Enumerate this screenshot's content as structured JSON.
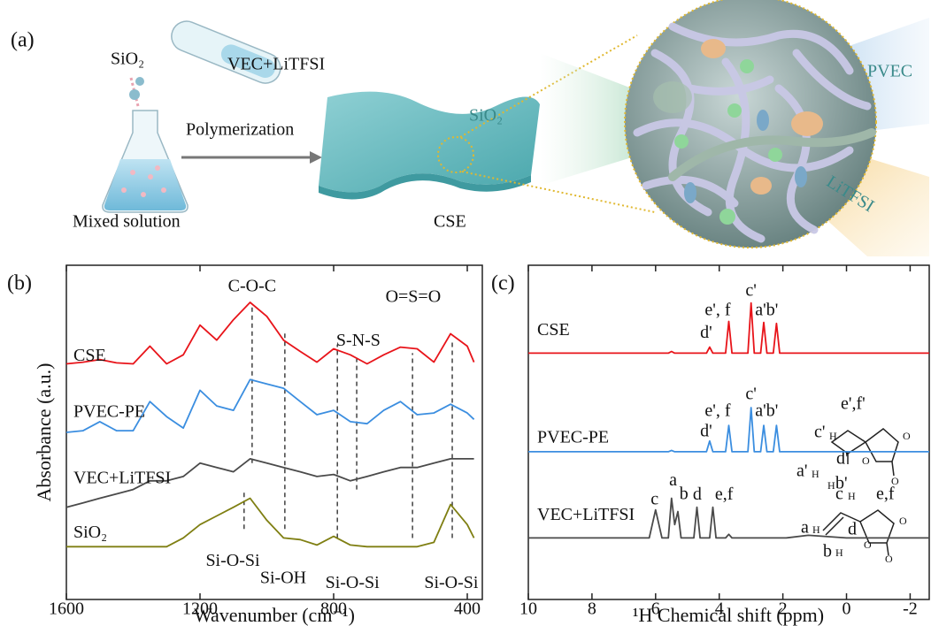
{
  "figure": {
    "panel_a": {
      "label": "(a)",
      "silica": "SiO₂",
      "monomer": "VEC+LiTFSI",
      "process": "Polymerization",
      "flask": "Mixed solution",
      "membrane": "CSE",
      "zoom_silica": "SiO₂",
      "zoom_polymer": "PVEC",
      "zoom_salt": "LiTFSI"
    },
    "structures": {
      "pvec": [
        "e',f'",
        "c'",
        "H",
        "d'",
        "a'",
        "H",
        "H",
        "b'",
        "O",
        "O",
        "O"
      ],
      "vec": [
        "c",
        "H",
        "e,f",
        "a",
        "H",
        "d",
        "b",
        "H",
        "O",
        "O",
        "O"
      ]
    }
  },
  "chart_data": [
    {
      "type": "line",
      "panel_label": "(b)",
      "xlabel": "Wavenumber (cm⁻¹)",
      "ylabel": "Absorbance (a.u.)",
      "x": [
        1600,
        1550,
        1500,
        1450,
        1400,
        1350,
        1300,
        1250,
        1200,
        1150,
        1100,
        1050,
        1000,
        950,
        900,
        850,
        800,
        750,
        700,
        650,
        600,
        550,
        500,
        450,
        400,
        380
      ],
      "xlim": [
        1600,
        355
      ],
      "xticks": [
        1600,
        1200,
        800,
        400
      ],
      "ylim": [
        0,
        100
      ],
      "series": [
        {
          "name": "CSE",
          "color": "#e8141a",
          "values": [
            70.5,
            71,
            71.8,
            70.8,
            70.5,
            75.8,
            70.5,
            73.2,
            82.1,
            77.6,
            83.7,
            88.9,
            84.7,
            77.6,
            74.2,
            71,
            75,
            73.2,
            70.5,
            73.2,
            75.5,
            75,
            71,
            79.5,
            75.8,
            71
          ]
        },
        {
          "name": "PVEC-PE",
          "color": "#3b8ee0",
          "values": [
            50,
            50.5,
            53.2,
            50.5,
            50.5,
            59.2,
            54.7,
            51.3,
            62.6,
            57.9,
            56.6,
            65.8,
            64.5,
            63.2,
            59.2,
            55.3,
            56.6,
            53.2,
            52.6,
            56.6,
            59.2,
            55.3,
            55.8,
            58.4,
            55.8,
            53.9
          ]
        },
        {
          "name": "VEC+LiTFSI",
          "color": "#4a4a4a",
          "values": [
            27.6,
            28.9,
            30.3,
            31.6,
            32.9,
            35.5,
            35.5,
            36.8,
            40.8,
            39.5,
            38.2,
            42.1,
            40.8,
            39.5,
            38.2,
            36.8,
            37.4,
            35.5,
            36.8,
            38.2,
            39.5,
            39.5,
            40.8,
            42.1,
            42.1,
            42.1
          ]
        },
        {
          "name": "SiO₂",
          "color": "#7f7f12",
          "values": [
            15.8,
            15.8,
            15.8,
            15.8,
            15.8,
            15.8,
            15.8,
            18.4,
            22.4,
            25,
            27.6,
            30.3,
            23.7,
            18.4,
            17.9,
            16.3,
            18.9,
            16.3,
            15.8,
            15.8,
            15.8,
            15.8,
            17.1,
            28.4,
            22.4,
            18.4
          ]
        }
      ],
      "vlines": [
        {
          "x": 1068,
          "y": [
            21.1,
            32.9
          ]
        },
        {
          "x": 1044,
          "y": [
            40.8,
            88.2
          ]
        },
        {
          "x": 946,
          "y": [
            21.1,
            80.3
          ]
        },
        {
          "x": 789,
          "y": [
            18.4,
            76.3
          ]
        },
        {
          "x": 731,
          "y": [
            32.9,
            72.4
          ]
        },
        {
          "x": 564,
          "y": [
            18.4,
            73.7
          ]
        },
        {
          "x": 445,
          "y": [
            18.4,
            77.6
          ]
        }
      ],
      "annotations": [
        {
          "text": "C-O-C",
          "x": 1044,
          "y": 93.4
        },
        {
          "text": "S-N-S",
          "x": 726,
          "y": 77.1
        },
        {
          "text": "O=S=O",
          "x": 562,
          "y": 90.3
        },
        {
          "text": "Si-O-Si",
          "x": 1102,
          "y": 11.3
        },
        {
          "text": "Si-OH",
          "x": 951,
          "y": 6.1
        },
        {
          "text": "Si-O-Si",
          "x": 744,
          "y": 4.7
        },
        {
          "text": "Si-O-Si",
          "x": 448,
          "y": 4.7
        }
      ]
    },
    {
      "type": "line",
      "panel_label": "(c)",
      "xlabel": "¹H Chemical shift (ppm)",
      "x": [
        10,
        7,
        6.5,
        6.2,
        6.0,
        5.8,
        5.6,
        5.5,
        5.4,
        5.3,
        5.2,
        5.0,
        4.8,
        4.7,
        4.6,
        4.4,
        4.3,
        4.2,
        4.1,
        3.9,
        3.8,
        3.7,
        3.6,
        3.4,
        3.1,
        3.0,
        2.9,
        2.7,
        2.6,
        2.5,
        2.3,
        2.2,
        2.1,
        1.9,
        1.2,
        0,
        -2.6
      ],
      "xlim": [
        10,
        -2.6
      ],
      "xticks": [
        10,
        8,
        6,
        4,
        2,
        0,
        -2
      ],
      "ylim": [
        0,
        100
      ],
      "series": [
        {
          "name": "CSE",
          "color": "#e8141a",
          "values": [
            73.7,
            73.7,
            73.7,
            73.7,
            73.7,
            73.7,
            73.7,
            74.2,
            73.7,
            73.7,
            73.7,
            73.7,
            73.7,
            73.7,
            73.7,
            73.7,
            75.5,
            73.7,
            73.7,
            73.7,
            73.7,
            83.2,
            73.7,
            73.7,
            73.7,
            88.7,
            73.7,
            73.7,
            82.9,
            73.7,
            73.7,
            82.6,
            73.7,
            73.7,
            73.7,
            73.7,
            73.7
          ]
        },
        {
          "name": "PVEC-PE",
          "color": "#3b8ee0",
          "values": [
            44.2,
            44.2,
            44.2,
            44.2,
            44.2,
            44.2,
            44.2,
            44.6,
            44.2,
            44.2,
            44.2,
            44.2,
            44.2,
            44.2,
            44.2,
            44.2,
            47.4,
            44.2,
            44.2,
            44.2,
            44.2,
            52.1,
            44.2,
            44.2,
            44.2,
            57.4,
            44.2,
            44.2,
            52.1,
            44.2,
            44.2,
            52.1,
            44.2,
            44.2,
            44.2,
            44.2,
            44.2
          ]
        },
        {
          "name": "VEC+LiTFSI",
          "color": "#4a4a4a",
          "values": [
            18.4,
            18.4,
            18.4,
            18.4,
            26.8,
            18.4,
            18.4,
            30.3,
            22.4,
            26.3,
            18.4,
            18.4,
            18.4,
            27.6,
            18.4,
            18.4,
            18.4,
            27.6,
            18.4,
            18.4,
            18.4,
            19.5,
            18.4,
            18.4,
            18.4,
            18.4,
            18.4,
            18.4,
            18.4,
            18.4,
            18.4,
            18.4,
            18.4,
            18.4,
            19.2,
            18.4,
            18.4
          ]
        }
      ],
      "annotations": [
        {
          "text": "c'",
          "x": 3.0,
          "y": 92.1
        },
        {
          "text": "e', f",
          "x": 4.05,
          "y": 86.3
        },
        {
          "text": "a'b'",
          "x": 2.51,
          "y": 86.3
        },
        {
          "text": "d'",
          "x": 4.41,
          "y": 79.5
        },
        {
          "text": "c'",
          "x": 3.0,
          "y": 61.1
        },
        {
          "text": "e', f",
          "x": 4.05,
          "y": 56.1
        },
        {
          "text": "a'b'",
          "x": 2.51,
          "y": 56.1
        },
        {
          "text": "d'",
          "x": 4.41,
          "y": 50
        },
        {
          "text": "c",
          "x": 6.03,
          "y": 29.7
        },
        {
          "text": "a",
          "x": 5.45,
          "y": 35.3
        },
        {
          "text": "b",
          "x": 5.11,
          "y": 31.3
        },
        {
          "text": "d",
          "x": 4.69,
          "y": 31.1
        },
        {
          "text": "e,f",
          "x": 3.85,
          "y": 31.1
        }
      ]
    }
  ]
}
